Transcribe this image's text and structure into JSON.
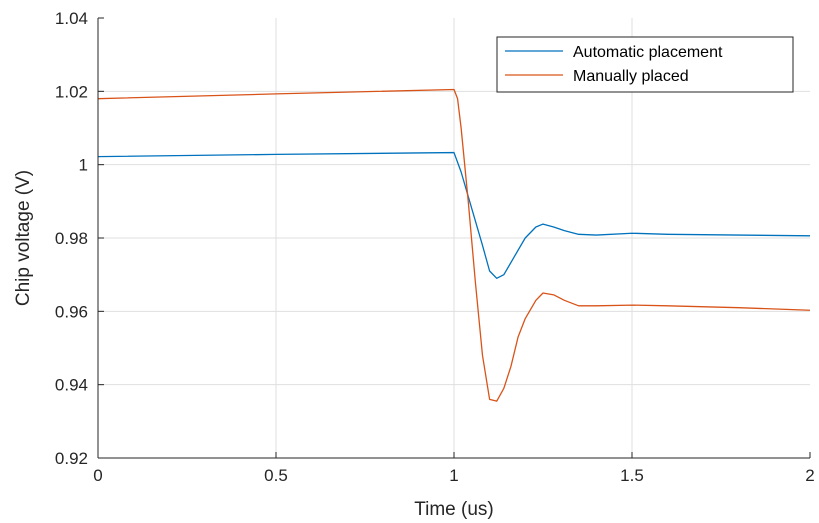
{
  "chart_data": {
    "type": "line",
    "title": "",
    "xlabel": "Time (us)",
    "ylabel": "Chip voltage (V)",
    "xlim": [
      0,
      2
    ],
    "ylim": [
      0.92,
      1.04
    ],
    "x_ticks": [
      0,
      0.5,
      1,
      1.5,
      2
    ],
    "x_tick_labels": [
      "0",
      "0.5",
      "1",
      "1.5",
      "2"
    ],
    "y_ticks": [
      0.92,
      0.94,
      0.96,
      0.98,
      1.0,
      1.02,
      1.04
    ],
    "y_tick_labels": [
      "0.92",
      "0.94",
      "0.96",
      "0.98",
      "1",
      "1.02",
      "1.04"
    ],
    "grid": true,
    "legend_position": "top-right",
    "series": [
      {
        "name": "Automatic placement",
        "color": "#0072BD",
        "x": [
          0,
          0.5,
          1.0,
          1.02,
          1.05,
          1.08,
          1.1,
          1.12,
          1.14,
          1.17,
          1.2,
          1.23,
          1.25,
          1.28,
          1.31,
          1.35,
          1.4,
          1.5,
          1.6,
          1.8,
          2.0
        ],
        "y": [
          1.0022,
          1.0028,
          1.0033,
          0.998,
          0.988,
          0.978,
          0.971,
          0.969,
          0.97,
          0.975,
          0.98,
          0.983,
          0.9838,
          0.983,
          0.982,
          0.981,
          0.9808,
          0.9813,
          0.981,
          0.9808,
          0.9806
        ]
      },
      {
        "name": "Manually placed",
        "color": "#D95319",
        "x": [
          0,
          0.5,
          1.0,
          1.01,
          1.02,
          1.04,
          1.06,
          1.08,
          1.1,
          1.12,
          1.14,
          1.16,
          1.18,
          1.2,
          1.23,
          1.25,
          1.28,
          1.31,
          1.35,
          1.4,
          1.5,
          1.6,
          1.8,
          2.0
        ],
        "y": [
          1.018,
          1.0193,
          1.0205,
          1.018,
          1.01,
          0.99,
          0.968,
          0.948,
          0.936,
          0.9355,
          0.939,
          0.945,
          0.953,
          0.958,
          0.963,
          0.965,
          0.9645,
          0.963,
          0.9615,
          0.9615,
          0.9617,
          0.9615,
          0.961,
          0.9603
        ]
      }
    ]
  }
}
